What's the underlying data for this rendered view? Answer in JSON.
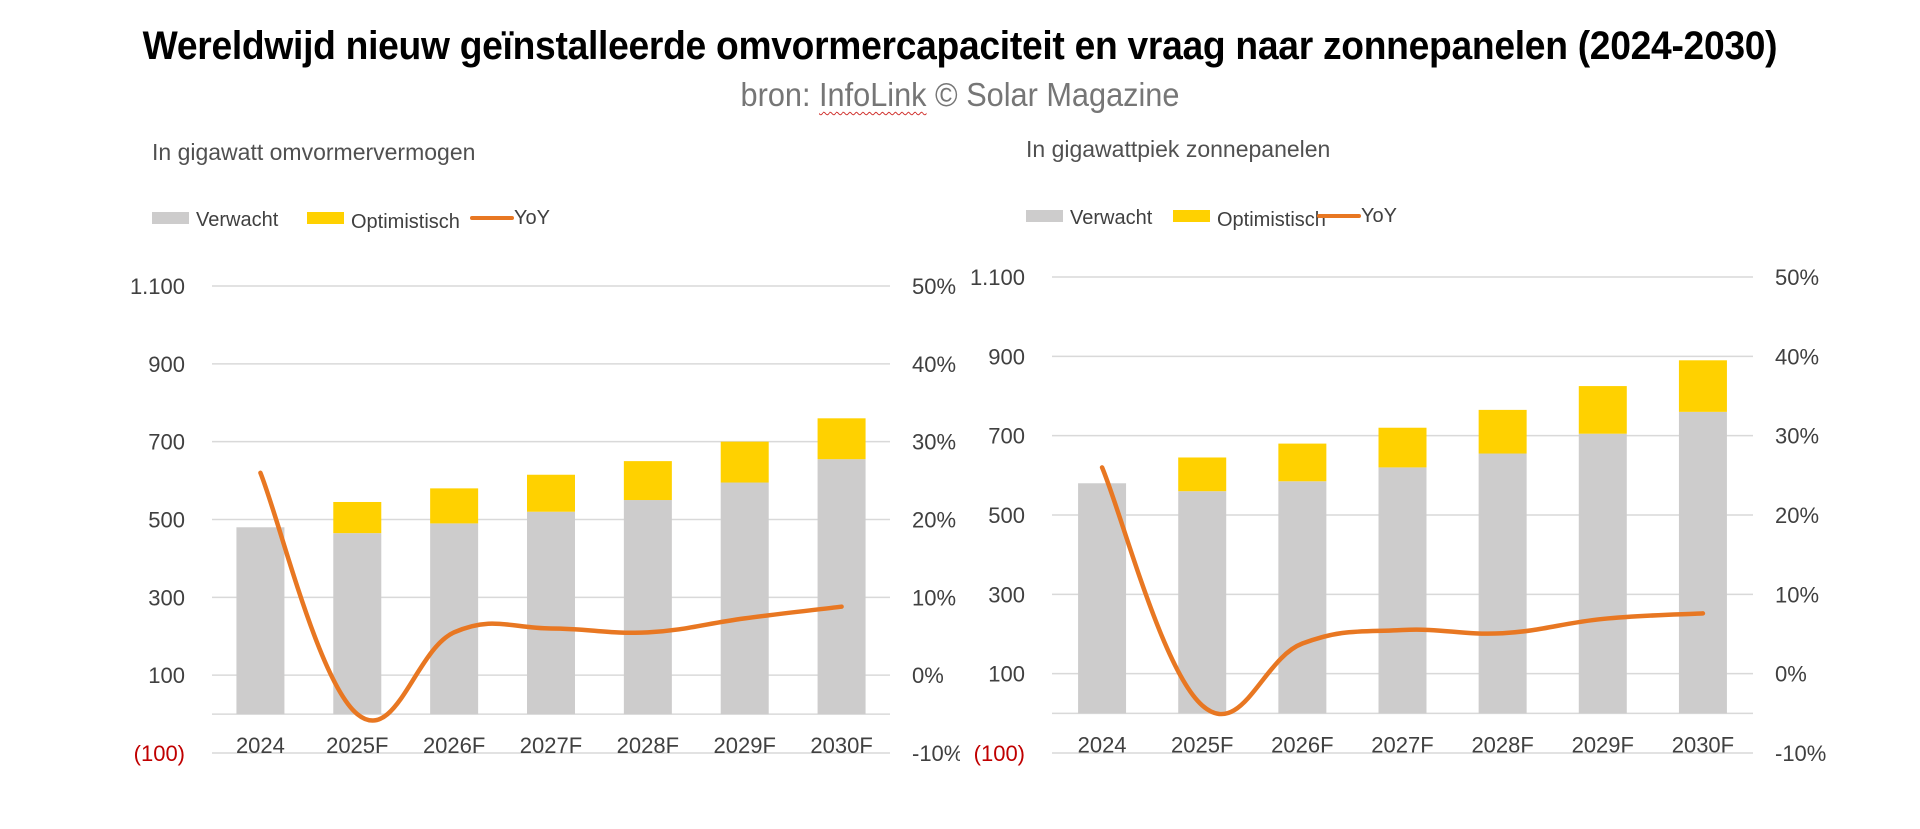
{
  "header": {
    "title": "Wereldwijd nieuw geïnstalleerde omvormercapaciteit en vraag naar zonnepanelen (2024-2030)",
    "source_prefix": "bron: ",
    "source_name": "InfoLink",
    "source_suffix": " © Solar Magazine"
  },
  "colors": {
    "verwacht": "#cdcccc",
    "optimistisch": "#ffd100",
    "yoy": "#e87722",
    "grid": "#d9d9d9",
    "axis_text": "#404040",
    "negative_label": "#c00000"
  },
  "chart_data": [
    {
      "type": "bar",
      "stacked": true,
      "subtitle": "In gigawatt omvormervermogen",
      "categories": [
        "2024",
        "2025F",
        "2026F",
        "2027F",
        "2028F",
        "2029F",
        "2030F"
      ],
      "legend": [
        "Verwacht",
        "Optimistisch",
        "YoY"
      ],
      "legend_position": "top-left",
      "series": [
        {
          "name": "Verwacht",
          "type": "bar",
          "axis": "left",
          "values": [
            480,
            465,
            490,
            520,
            550,
            595,
            655
          ]
        },
        {
          "name": "Optimistisch",
          "type": "bar",
          "axis": "left",
          "values": [
            0,
            80,
            90,
            95,
            100,
            105,
            105
          ]
        },
        {
          "name": "YoY",
          "type": "line",
          "axis": "right",
          "values": [
            26,
            -5,
            5.5,
            6,
            5.5,
            7.3,
            8.8
          ]
        }
      ],
      "left_axis": {
        "ticks": [
          1100,
          900,
          700,
          500,
          300,
          100,
          -100
        ],
        "tick_labels": [
          "1.100",
          "900",
          "700",
          "500",
          "300",
          "100",
          "(100)"
        ],
        "range": [
          -100,
          1100
        ]
      },
      "right_axis": {
        "ticks": [
          50,
          40,
          30,
          20,
          10,
          0,
          -10
        ],
        "tick_labels": [
          "50%",
          "40%",
          "30%",
          "20%",
          "10%",
          "0%",
          "-10%"
        ],
        "range": [
          -10,
          50
        ]
      },
      "grid": true
    },
    {
      "type": "bar",
      "stacked": true,
      "subtitle": "In gigawattpiek zonnepanelen",
      "categories": [
        "2024",
        "2025F",
        "2026F",
        "2027F",
        "2028F",
        "2029F",
        "2030F"
      ],
      "legend": [
        "Verwacht",
        "Optimistisch",
        "YoY"
      ],
      "legend_position": "top-left",
      "series": [
        {
          "name": "Verwacht",
          "type": "bar",
          "axis": "left",
          "values": [
            580,
            560,
            585,
            620,
            655,
            705,
            760
          ]
        },
        {
          "name": "Optimistisch",
          "type": "bar",
          "axis": "left",
          "values": [
            0,
            85,
            95,
            100,
            110,
            120,
            130
          ]
        },
        {
          "name": "YoY",
          "type": "line",
          "axis": "right",
          "values": [
            26,
            -4,
            3.8,
            5.5,
            5.1,
            6.9,
            7.6
          ]
        }
      ],
      "left_axis": {
        "ticks": [
          1100,
          900,
          700,
          500,
          300,
          100,
          -100
        ],
        "tick_labels": [
          "1.100",
          "900",
          "700",
          "500",
          "300",
          "100",
          "(100)"
        ],
        "range": [
          -100,
          1100
        ]
      },
      "right_axis": {
        "ticks": [
          50,
          40,
          30,
          20,
          10,
          0,
          -10
        ],
        "tick_labels": [
          "50%",
          "40%",
          "30%",
          "20%",
          "10%",
          "0%",
          "-10%"
        ],
        "range": [
          -10,
          50
        ]
      },
      "grid": true
    }
  ]
}
